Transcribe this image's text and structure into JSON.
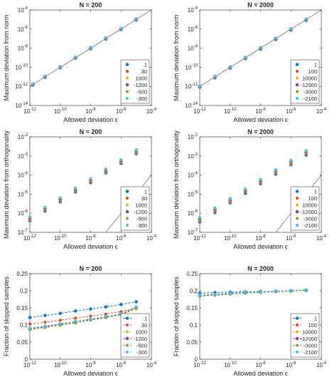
{
  "chart_data": [
    {
      "type": "scatter",
      "title": "N = 200",
      "xlabel": "Allowed deviation ϵ",
      "ylabel": "Maximum deviation from norm",
      "x_scale": "log",
      "y_scale": "log",
      "xlim": [
        1e-12,
        0.0001
      ],
      "ylim": [
        1e-14,
        0.0001
      ],
      "x_ticks": [
        -12,
        -10,
        -8,
        -6,
        -4
      ],
      "y_ticks": [
        -14,
        -12,
        -10,
        -8,
        -6,
        -4
      ],
      "grid": false,
      "diagonal_reference": true,
      "legend_position": "bottom-right",
      "x": [
        1.6e-12,
        1e-11,
        1e-10,
        1e-09,
        1e-08,
        1e-07,
        1e-06,
        1e-05
      ],
      "series": [
        {
          "name": "1",
          "color": "#0072bd",
          "marker": "asterisk",
          "values": [
            1.4e-12,
            9e-12,
            9e-11,
            9e-10,
            9e-09,
            9e-08,
            9e-07,
            9e-06
          ]
        },
        {
          "name": "30",
          "color": "#d95319",
          "marker": "dot",
          "values": [
            1.5e-12,
            1e-11,
            1e-10,
            1e-09,
            1e-08,
            1e-07,
            1e-06,
            1e-05
          ]
        },
        {
          "name": "1000",
          "color": "#edb120",
          "marker": "dot",
          "values": [
            1.6e-12,
            1.05e-11,
            1.05e-10,
            1.05e-09,
            1.05e-08,
            1.05e-07,
            1.05e-06,
            1.05e-05
          ]
        },
        {
          "name": "-1200",
          "color": "#7e2f8e",
          "marker": "asterisk",
          "values": [
            1.7e-12,
            1.1e-11,
            1.1e-10,
            1.1e-09,
            1.1e-08,
            1.1e-07,
            1.1e-06,
            1.1e-05
          ]
        },
        {
          "name": "-500",
          "color": "#77ac30",
          "marker": "dot",
          "values": [
            1.8e-12,
            1.15e-11,
            1.15e-10,
            1.15e-09,
            1.15e-08,
            1.15e-07,
            1.15e-06,
            1.15e-05
          ]
        },
        {
          "name": "-300",
          "color": "#4dbeee",
          "marker": "dot",
          "values": [
            1.9e-12,
            1.2e-11,
            1.2e-10,
            1.2e-09,
            1.2e-08,
            1.2e-07,
            1.2e-06,
            1.2e-05
          ]
        }
      ]
    },
    {
      "type": "scatter",
      "title": "N = 2000",
      "xlabel": "Allowed deviation ϵ",
      "ylabel": "Maximum deviation from norm",
      "x_scale": "log",
      "y_scale": "log",
      "xlim": [
        1e-12,
        0.0001
      ],
      "ylim": [
        1e-14,
        0.0001
      ],
      "x_ticks": [
        -12,
        -10,
        -8,
        -6,
        -4
      ],
      "y_ticks": [
        -14,
        -12,
        -10,
        -8,
        -6,
        -4
      ],
      "grid": false,
      "diagonal_reference": true,
      "legend_position": "bottom-right",
      "x": [
        1e-12,
        1e-11,
        1e-10,
        1e-09,
        1e-08,
        1e-07,
        1e-06,
        1e-05
      ],
      "series": [
        {
          "name": "1",
          "color": "#0072bd",
          "marker": "asterisk",
          "values": [
            8e-13,
            8e-12,
            8e-11,
            8e-10,
            8e-09,
            8e-08,
            8e-07,
            8e-06
          ]
        },
        {
          "name": "100",
          "color": "#d95319",
          "marker": "dot",
          "values": [
            9e-13,
            9e-12,
            9e-11,
            9e-10,
            9e-09,
            9e-08,
            9e-07,
            9e-06
          ]
        },
        {
          "name": "10000",
          "color": "#edb120",
          "marker": "dot",
          "values": [
            1e-12,
            1e-11,
            1e-10,
            1e-09,
            1e-08,
            1e-07,
            1e-06,
            1e-05
          ]
        },
        {
          "name": "-12000",
          "color": "#7e2f8e",
          "marker": "asterisk",
          "values": [
            1.05e-12,
            1.05e-11,
            1.05e-10,
            1.05e-09,
            1.05e-08,
            1.05e-07,
            1.05e-06,
            1.05e-05
          ]
        },
        {
          "name": "-3000",
          "color": "#77ac30",
          "marker": "dot",
          "values": [
            1.1e-12,
            1.1e-11,
            1.1e-10,
            1.1e-09,
            1.1e-08,
            1.1e-07,
            1.1e-06,
            1.1e-05
          ]
        },
        {
          "name": "-2100",
          "color": "#4dbeee",
          "marker": "dot",
          "values": [
            1.15e-12,
            1.15e-11,
            1.15e-10,
            1.15e-09,
            1.15e-08,
            1.15e-07,
            1.15e-06,
            1.15e-05
          ]
        }
      ]
    },
    {
      "type": "scatter",
      "title": "N = 200",
      "xlabel": "Allowed deviation ϵ",
      "ylabel": "Maximum deviation from orthogonality",
      "x_scale": "log",
      "y_scale": "log",
      "xlim": [
        1e-12,
        0.0001
      ],
      "ylim": [
        1e-07,
        0.01
      ],
      "x_ticks": [
        -12,
        -10,
        -8,
        -6,
        -4
      ],
      "y_ticks": [
        -7,
        -6,
        -5,
        -4,
        -3,
        -2
      ],
      "grid": false,
      "diagonal_reference": true,
      "legend_position": "bottom-right",
      "x": [
        1e-12,
        1e-11,
        1e-10,
        1e-09,
        1e-08,
        1e-07,
        1e-06,
        1e-05
      ],
      "series": [
        {
          "name": "1",
          "color": "#0072bd",
          "marker": "asterisk",
          "values": [
            4e-07,
            1.3e-06,
            4e-06,
            1.3e-05,
            4e-05,
            0.00013,
            0.0004,
            0.0013
          ]
        },
        {
          "name": "30",
          "color": "#d95319",
          "marker": "dot",
          "values": [
            4.5e-07,
            1.45e-06,
            4.5e-06,
            1.45e-05,
            4.5e-05,
            0.000145,
            0.00045,
            0.00145
          ]
        },
        {
          "name": "1000",
          "color": "#edb120",
          "marker": "dot",
          "values": [
            5e-07,
            1.6e-06,
            5e-06,
            1.6e-05,
            5e-05,
            0.00016,
            0.0005,
            0.0016
          ]
        },
        {
          "name": "-1200",
          "color": "#7e2f8e",
          "marker": "asterisk",
          "values": [
            5.5e-07,
            1.75e-06,
            5.5e-06,
            1.75e-05,
            5.5e-05,
            0.000175,
            0.00055,
            0.00175
          ]
        },
        {
          "name": "-500",
          "color": "#77ac30",
          "marker": "dot",
          "values": [
            6e-07,
            1.9e-06,
            6e-06,
            1.9e-05,
            6e-05,
            0.00019,
            0.0006,
            0.0019
          ]
        },
        {
          "name": "-300",
          "color": "#4dbeee",
          "marker": "dot",
          "values": [
            6.5e-07,
            2.1e-06,
            6.5e-06,
            2.1e-05,
            6.5e-05,
            0.00021,
            0.00065,
            0.0021
          ]
        }
      ]
    },
    {
      "type": "scatter",
      "title": "N = 2000",
      "xlabel": "Allowed deviation ϵ",
      "ylabel": "Maximum deviation from orthogonality",
      "x_scale": "log",
      "y_scale": "log",
      "xlim": [
        1e-12,
        0.0001
      ],
      "ylim": [
        1e-07,
        0.01
      ],
      "x_ticks": [
        -12,
        -10,
        -8,
        -6,
        -4
      ],
      "y_ticks": [
        -7,
        -6,
        -5,
        -4,
        -3,
        -2
      ],
      "grid": false,
      "diagonal_reference": true,
      "legend_position": "bottom-right",
      "x": [
        1e-12,
        1e-11,
        1e-10,
        1e-09,
        1e-08,
        1e-07,
        1e-06,
        1e-05
      ],
      "series": [
        {
          "name": "1",
          "color": "#0072bd",
          "marker": "asterisk",
          "values": [
            3.5e-07,
            1.1e-06,
            3.5e-06,
            1.1e-05,
            3.5e-05,
            0.00011,
            0.00035,
            0.0011
          ]
        },
        {
          "name": "100",
          "color": "#d95319",
          "marker": "dot",
          "values": [
            4e-07,
            1.3e-06,
            4e-06,
            1.3e-05,
            4e-05,
            0.00013,
            0.0004,
            0.0013
          ]
        },
        {
          "name": "10000",
          "color": "#edb120",
          "marker": "dot",
          "values": [
            4.5e-07,
            1.45e-06,
            4.5e-06,
            1.45e-05,
            4.5e-05,
            0.000145,
            0.00045,
            0.00145
          ]
        },
        {
          "name": "-12000",
          "color": "#7e2f8e",
          "marker": "asterisk",
          "values": [
            5e-07,
            1.6e-06,
            5e-06,
            1.6e-05,
            5e-05,
            0.00016,
            0.0005,
            0.0016
          ]
        },
        {
          "name": "-3000",
          "color": "#77ac30",
          "marker": "dot",
          "values": [
            5.5e-07,
            1.75e-06,
            5.5e-06,
            1.75e-05,
            5.5e-05,
            0.000175,
            0.00055,
            0.00175
          ]
        },
        {
          "name": "-2100",
          "color": "#4dbeee",
          "marker": "dot",
          "values": [
            6e-07,
            1.9e-06,
            6e-06,
            1.9e-05,
            6e-05,
            0.00019,
            0.0006,
            0.0019
          ]
        }
      ]
    },
    {
      "type": "line",
      "title": "N = 200",
      "xlabel": "Allowed deviation ϵ",
      "ylabel": "Fraction of skipped samples",
      "x_scale": "log",
      "y_scale": "linear",
      "xlim": [
        1e-12,
        0.0001
      ],
      "ylim": [
        0,
        0.25
      ],
      "x_ticks": [
        -12,
        -10,
        -8,
        -6,
        -4
      ],
      "y_ticks": [
        0,
        0.05,
        0.1,
        0.15,
        0.2,
        0.25
      ],
      "grid": false,
      "line_style": "dashed",
      "legend_position": "bottom-right",
      "x": [
        1e-12,
        1e-11,
        1e-10,
        1e-09,
        1e-08,
        1e-07,
        1e-06,
        1e-05
      ],
      "series": [
        {
          "name": "1",
          "color": "#0072bd",
          "marker": "asterisk",
          "values": [
            0.122,
            0.128,
            0.134,
            0.141,
            0.147,
            0.153,
            0.16,
            0.168
          ]
        },
        {
          "name": "30",
          "color": "#d95319",
          "marker": "dot",
          "values": [
            0.103,
            0.108,
            0.114,
            0.12,
            0.126,
            0.132,
            0.139,
            0.15
          ]
        },
        {
          "name": "1000",
          "color": "#edb120",
          "marker": "dot",
          "values": [
            0.086,
            0.092,
            0.099,
            0.106,
            0.114,
            0.121,
            0.131,
            0.147
          ]
        },
        {
          "name": "-1200",
          "color": "#7e2f8e",
          "marker": "asterisk",
          "values": [
            0.089,
            0.095,
            0.102,
            0.108,
            0.116,
            0.123,
            0.131,
            0.151
          ]
        },
        {
          "name": "-500",
          "color": "#77ac30",
          "marker": "dot",
          "values": [
            0.087,
            0.093,
            0.1,
            0.107,
            0.114,
            0.122,
            0.13,
            0.149
          ]
        },
        {
          "name": "-300",
          "color": "#4dbeee",
          "marker": "dot",
          "values": [
            0.091,
            0.097,
            0.104,
            0.111,
            0.118,
            0.125,
            0.134,
            0.153
          ]
        }
      ]
    },
    {
      "type": "line",
      "title": "N = 2000",
      "xlabel": "Allowed deviation ϵ",
      "ylabel": "Fraction of skipped samples",
      "x_scale": "log",
      "y_scale": "linear",
      "xlim": [
        1e-12,
        0.0001
      ],
      "ylim": [
        0,
        0.25
      ],
      "x_ticks": [
        -12,
        -10,
        -8,
        -6,
        -4
      ],
      "y_ticks": [
        0,
        0.05,
        0.1,
        0.15,
        0.2,
        0.25
      ],
      "grid": false,
      "line_style": "dashed",
      "legend_position": "bottom-right",
      "x": [
        1e-12,
        1e-11,
        1e-10,
        1e-09,
        1e-08,
        1e-07,
        1e-06,
        1e-05
      ],
      "series": [
        {
          "name": "1",
          "color": "#0072bd",
          "marker": "asterisk",
          "values": [
            0.193,
            0.195,
            0.196,
            0.197,
            0.198,
            0.199,
            0.2,
            0.201
          ]
        },
        {
          "name": "100",
          "color": "#d95319",
          "marker": "dot",
          "values": [
            0.186,
            0.189,
            0.192,
            0.194,
            0.196,
            0.198,
            0.2,
            0.203
          ]
        },
        {
          "name": "10000",
          "color": "#edb120",
          "marker": "dot",
          "values": [
            0.185,
            0.188,
            0.191,
            0.193,
            0.195,
            0.197,
            0.199,
            0.202
          ]
        },
        {
          "name": "-12000",
          "color": "#7e2f8e",
          "marker": "asterisk",
          "values": [
            0.186,
            0.189,
            0.192,
            0.194,
            0.196,
            0.198,
            0.2,
            0.202
          ]
        },
        {
          "name": "-3000",
          "color": "#77ac30",
          "marker": "dot",
          "values": [
            0.184,
            0.187,
            0.19,
            0.193,
            0.195,
            0.197,
            0.199,
            0.201
          ]
        },
        {
          "name": "-2100",
          "color": "#4dbeee",
          "marker": "dot",
          "values": [
            0.187,
            0.19,
            0.193,
            0.195,
            0.197,
            0.199,
            0.201,
            0.203
          ]
        }
      ]
    }
  ]
}
